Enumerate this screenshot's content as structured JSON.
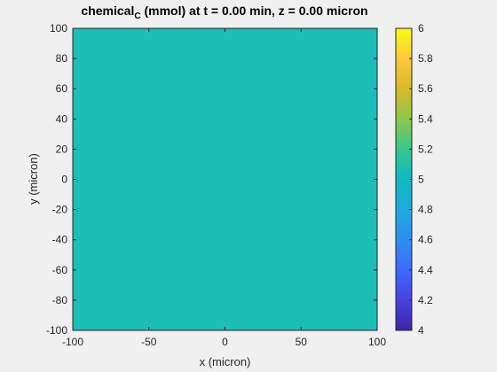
{
  "chart_data": {
    "type": "heatmap",
    "title": {
      "prefix": "chemical",
      "subscript": "C",
      "suffix": " (mmol) at t = 0.00 min, z = 0.00 micron"
    },
    "xlabel": "x (micron)",
    "ylabel": "y (micron)",
    "xlim": [
      -100,
      100
    ],
    "ylim": [
      -100,
      100
    ],
    "x_ticks": [
      -100,
      -50,
      0,
      50,
      100
    ],
    "y_ticks": [
      -100,
      -80,
      -60,
      -40,
      -20,
      0,
      20,
      40,
      60,
      80,
      100
    ],
    "field_value": 5,
    "field_color": "#1bbfb6",
    "colorbar": {
      "range": [
        4,
        6
      ],
      "ticks": [
        "4",
        "4.2",
        "4.4",
        "4.6",
        "4.8",
        "5",
        "5.2",
        "5.4",
        "5.6",
        "5.8",
        "6"
      ],
      "colormap": "parula"
    }
  }
}
